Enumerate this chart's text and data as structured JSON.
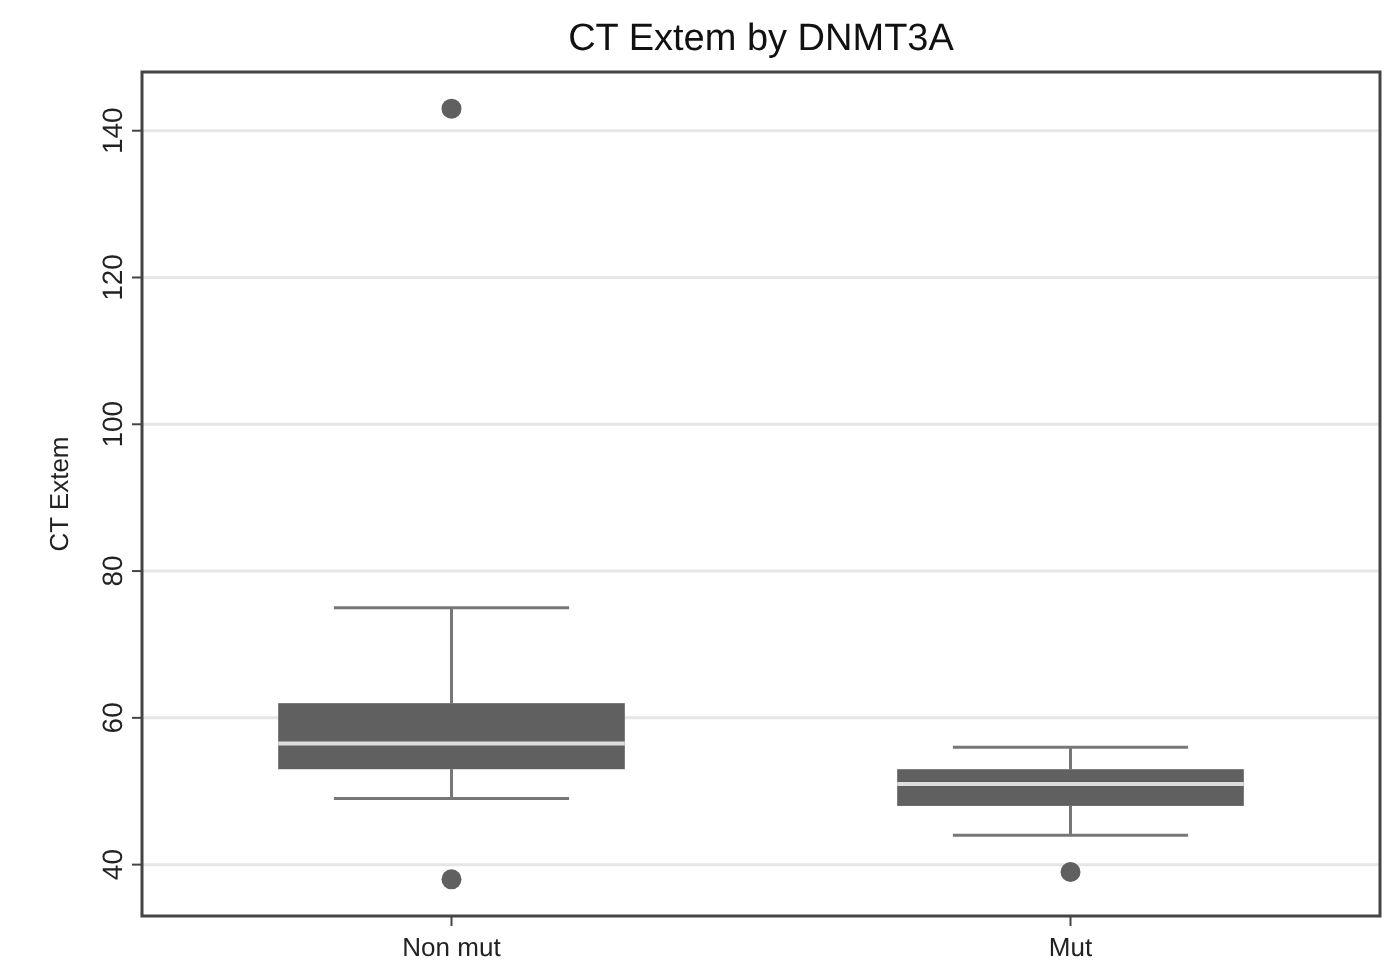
{
  "chart_data": {
    "type": "box",
    "title": "CT Extem by DNMT3A",
    "ylabel": "CT Extem",
    "categories": [
      "Non mut",
      "Mut"
    ],
    "boxes": [
      {
        "low": 49,
        "q1": 53,
        "median": 56.5,
        "q3": 62,
        "high": 75,
        "outliers": [
          143,
          38
        ]
      },
      {
        "low": 44,
        "q1": 48,
        "median": 51,
        "q3": 53,
        "high": 56,
        "outliers": [
          39
        ]
      }
    ],
    "color": "#606060",
    "ylim": [
      33,
      148
    ],
    "yticks": [
      40,
      60,
      80,
      100,
      120,
      140
    ],
    "grid": "y"
  }
}
